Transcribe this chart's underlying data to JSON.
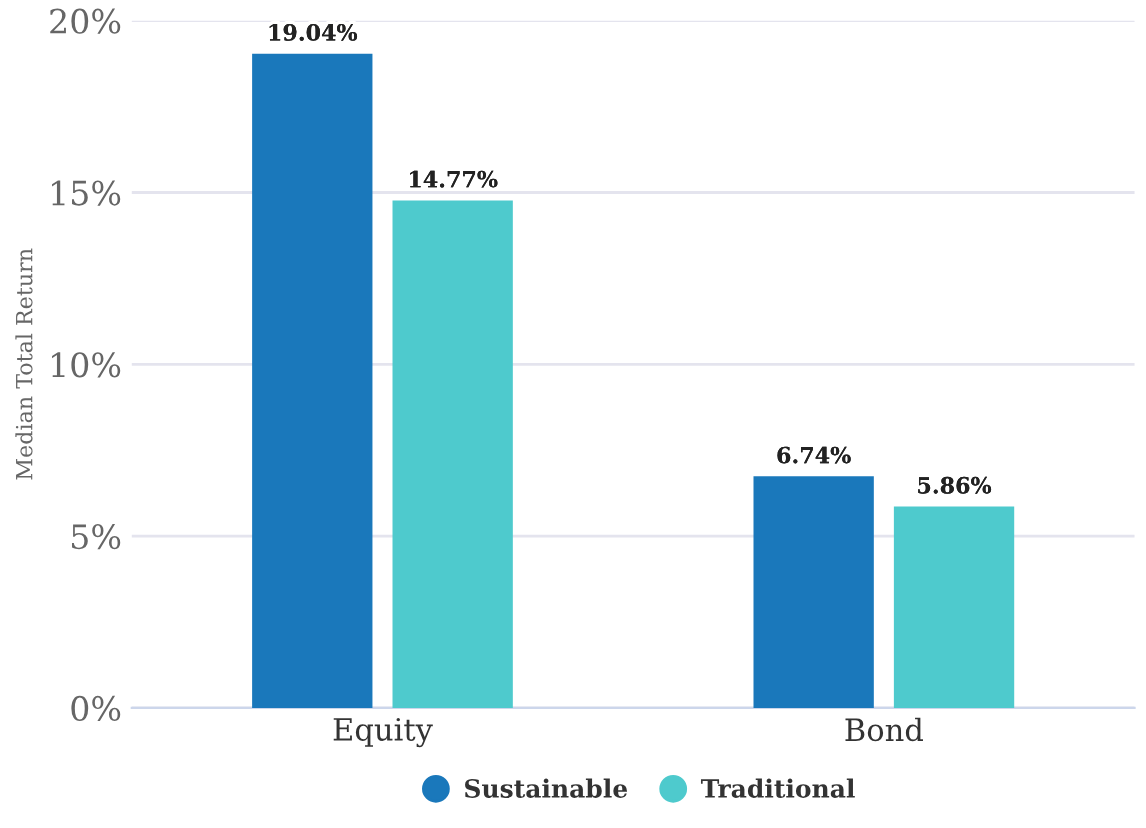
{
  "chart_data": {
    "type": "bar",
    "ylabel": "Median Total Return",
    "categories": [
      "Equity",
      "Bond"
    ],
    "series": [
      {
        "name": "Sustainable",
        "color": "#1a78bb",
        "values": [
          19.04,
          6.74
        ],
        "value_labels": [
          "19.04%",
          "6.74%"
        ]
      },
      {
        "name": "Traditional",
        "color": "#4ecacd",
        "values": [
          14.77,
          5.86
        ],
        "value_labels": [
          "14.77%",
          "5.86%"
        ]
      }
    ],
    "ylim": [
      0,
      20
    ],
    "yticks": [
      {
        "value": 0,
        "label": "0%"
      },
      {
        "value": 5,
        "label": "5%"
      },
      {
        "value": 10,
        "label": "10%"
      },
      {
        "value": 15,
        "label": "15%"
      },
      {
        "value": 20,
        "label": "20%"
      }
    ],
    "grid": "y",
    "legend": "bottom"
  }
}
